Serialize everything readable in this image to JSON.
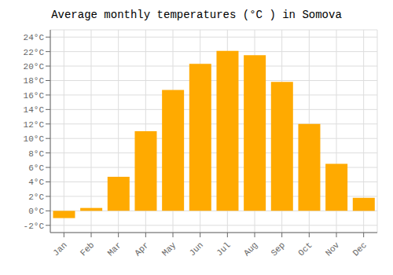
{
  "chart_data": {
    "type": "bar",
    "title": "Average monthly temperatures (°C ) in Somova",
    "categories": [
      "Jan",
      "Feb",
      "Mar",
      "Apr",
      "May",
      "Jun",
      "Jul",
      "Aug",
      "Sep",
      "Oct",
      "Nov",
      "Dec"
    ],
    "values": [
      -1.0,
      0.4,
      4.7,
      11.0,
      16.7,
      20.3,
      22.1,
      21.5,
      17.8,
      12.0,
      6.5,
      1.8
    ],
    "color": "#FFAA00",
    "ylim": [
      -3,
      25
    ],
    "yticks": [
      {
        "value": -2,
        "label": "-2°C"
      },
      {
        "value": 0,
        "label": "0°C"
      },
      {
        "value": 2,
        "label": "2°C"
      },
      {
        "value": 4,
        "label": "4°C"
      },
      {
        "value": 6,
        "label": "6°C"
      },
      {
        "value": 8,
        "label": "8°C"
      },
      {
        "value": 10,
        "label": "10°C"
      },
      {
        "value": 12,
        "label": "12°C"
      },
      {
        "value": 14,
        "label": "14°C"
      },
      {
        "value": 16,
        "label": "16°C"
      },
      {
        "value": 18,
        "label": "18°C"
      },
      {
        "value": 20,
        "label": "20°C"
      },
      {
        "value": 22,
        "label": "22°C"
      },
      {
        "value": 24,
        "label": "24°C"
      }
    ],
    "grid": true
  }
}
